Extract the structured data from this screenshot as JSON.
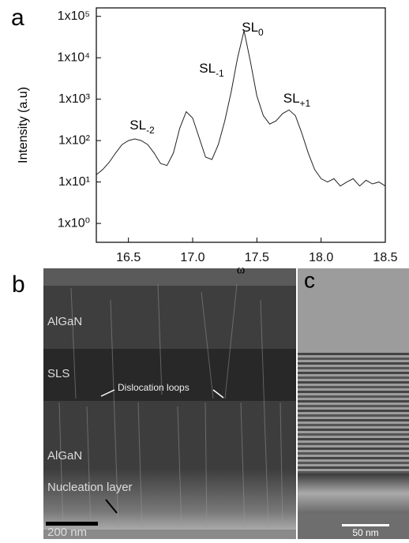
{
  "chart_data": {
    "type": "line",
    "panel_label": "a",
    "xlabel": "ω",
    "ylabel": "Intensity (a.u)",
    "log_y": true,
    "xlim": [
      16.25,
      18.5
    ],
    "xticks": [
      16.5,
      {
        "value": 17,
        "label": "17.0"
      },
      17.5,
      {
        "value": 18,
        "label": "18.0"
      },
      18.5
    ],
    "ylim": [
      0.35,
      160000
    ],
    "yticks": [
      {
        "value": 1,
        "label": "1x10⁰"
      },
      {
        "value": 10,
        "label": "1x10¹"
      },
      {
        "value": 100,
        "label": "1x10²"
      },
      {
        "value": 1000,
        "label": "1x10³"
      },
      {
        "value": 10000,
        "label": "1x10⁴"
      },
      {
        "value": 100000,
        "label": "1x10⁵"
      }
    ],
    "series": [
      {
        "color": "#222222",
        "x": [
          16.25,
          16.3,
          16.35,
          16.4,
          16.45,
          16.5,
          16.55,
          16.6,
          16.65,
          16.7,
          16.75,
          16.8,
          16.85,
          16.9,
          16.95,
          17.0,
          17.05,
          17.1,
          17.15,
          17.2,
          17.25,
          17.3,
          17.35,
          17.4,
          17.45,
          17.5,
          17.55,
          17.6,
          17.65,
          17.7,
          17.75,
          17.8,
          17.85,
          17.9,
          17.95,
          18.0,
          18.05,
          18.1,
          18.15,
          18.2,
          18.25,
          18.3,
          18.35,
          18.4,
          18.45,
          18.5
        ],
        "values": [
          15,
          20,
          30,
          50,
          80,
          100,
          110,
          100,
          80,
          50,
          28,
          25,
          50,
          200,
          500,
          350,
          120,
          40,
          35,
          80,
          300,
          1500,
          10000,
          45000,
          8000,
          1200,
          400,
          250,
          300,
          450,
          550,
          400,
          150,
          50,
          20,
          12,
          10,
          12,
          8,
          10,
          12,
          8,
          11,
          9,
          10,
          8
        ]
      }
    ],
    "annotations": [
      {
        "text": "SL",
        "sub": "-2"
      },
      {
        "text": "SL",
        "sub": "-1"
      },
      {
        "text": "SL",
        "sub": "0"
      },
      {
        "text": "SL",
        "sub": "+1"
      }
    ]
  },
  "panel_b": {
    "label": "b",
    "layer_top": "AlGaN",
    "layer_sls": "SLS",
    "dislocation_note": "Dislocation loops",
    "layer_bottom": "AlGaN",
    "nucleation": "Nucleation layer",
    "scale_bar": "200 nm"
  },
  "panel_c": {
    "label": "c",
    "scale_bar": "50 nm"
  }
}
